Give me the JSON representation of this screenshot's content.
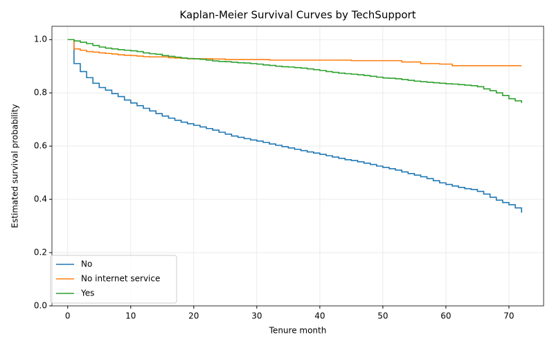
{
  "chart_data": {
    "type": "line",
    "drawstyle": "steps-post",
    "title": "Kaplan-Meier Survival Curves by TechSupport",
    "x_label": "Tenure month",
    "y_label": "Estimated survival probability",
    "x": [
      0,
      1,
      2,
      3,
      4,
      5,
      6,
      7,
      8,
      9,
      10,
      11,
      12,
      13,
      14,
      15,
      16,
      17,
      18,
      19,
      20,
      21,
      22,
      23,
      24,
      25,
      26,
      27,
      28,
      29,
      30,
      31,
      32,
      33,
      34,
      35,
      36,
      37,
      38,
      39,
      40,
      41,
      42,
      43,
      44,
      45,
      46,
      47,
      48,
      49,
      50,
      51,
      52,
      53,
      54,
      55,
      56,
      57,
      58,
      59,
      60,
      61,
      62,
      63,
      64,
      65,
      66,
      67,
      68,
      69,
      70,
      71,
      72
    ],
    "series": [
      {
        "name": "No",
        "color": "#1f77b4",
        "values": [
          1.0,
          0.91,
          0.88,
          0.857,
          0.836,
          0.82,
          0.81,
          0.797,
          0.786,
          0.773,
          0.762,
          0.752,
          0.742,
          0.732,
          0.722,
          0.713,
          0.705,
          0.697,
          0.69,
          0.684,
          0.678,
          0.672,
          0.666,
          0.66,
          0.652,
          0.645,
          0.638,
          0.633,
          0.628,
          0.623,
          0.619,
          0.614,
          0.608,
          0.603,
          0.598,
          0.593,
          0.588,
          0.583,
          0.578,
          0.574,
          0.569,
          0.564,
          0.559,
          0.554,
          0.549,
          0.546,
          0.541,
          0.536,
          0.531,
          0.525,
          0.52,
          0.515,
          0.51,
          0.503,
          0.497,
          0.491,
          0.485,
          0.478,
          0.47,
          0.462,
          0.456,
          0.45,
          0.445,
          0.44,
          0.437,
          0.43,
          0.42,
          0.408,
          0.397,
          0.388,
          0.38,
          0.368,
          0.35
        ]
      },
      {
        "name": "No internet service",
        "color": "#ff7f0e",
        "values": [
          1.0,
          0.965,
          0.96,
          0.955,
          0.953,
          0.95,
          0.948,
          0.946,
          0.943,
          0.941,
          0.94,
          0.938,
          0.936,
          0.935,
          0.935,
          0.935,
          0.932,
          0.931,
          0.93,
          0.928,
          0.928,
          0.928,
          0.928,
          0.927,
          0.927,
          0.925,
          0.925,
          0.925,
          0.925,
          0.925,
          0.925,
          0.925,
          0.923,
          0.923,
          0.923,
          0.923,
          0.923,
          0.923,
          0.923,
          0.923,
          0.923,
          0.923,
          0.923,
          0.923,
          0.923,
          0.921,
          0.921,
          0.921,
          0.921,
          0.921,
          0.921,
          0.921,
          0.921,
          0.916,
          0.916,
          0.916,
          0.91,
          0.91,
          0.91,
          0.908,
          0.908,
          0.902,
          0.902,
          0.902,
          0.902,
          0.902,
          0.902,
          0.902,
          0.902,
          0.902,
          0.902,
          0.902,
          0.902
        ]
      },
      {
        "name": "Yes",
        "color": "#2ca02c",
        "values": [
          1.0,
          0.995,
          0.99,
          0.985,
          0.978,
          0.972,
          0.968,
          0.965,
          0.962,
          0.96,
          0.958,
          0.955,
          0.95,
          0.947,
          0.945,
          0.94,
          0.937,
          0.934,
          0.931,
          0.929,
          0.928,
          0.926,
          0.923,
          0.92,
          0.918,
          0.917,
          0.915,
          0.913,
          0.912,
          0.91,
          0.908,
          0.905,
          0.903,
          0.9,
          0.898,
          0.897,
          0.895,
          0.893,
          0.89,
          0.887,
          0.884,
          0.88,
          0.877,
          0.874,
          0.872,
          0.87,
          0.868,
          0.865,
          0.862,
          0.859,
          0.856,
          0.855,
          0.853,
          0.85,
          0.847,
          0.844,
          0.842,
          0.84,
          0.838,
          0.836,
          0.834,
          0.833,
          0.831,
          0.829,
          0.827,
          0.823,
          0.815,
          0.808,
          0.8,
          0.79,
          0.778,
          0.77,
          0.762
        ]
      }
    ],
    "xlim": [
      -2.5,
      75.5
    ],
    "xticks": [
      0,
      10,
      20,
      30,
      40,
      50,
      60,
      70
    ],
    "ylim": [
      0,
      1.05
    ],
    "yticks": [
      {
        "value": 0,
        "label": "0.0"
      },
      {
        "value": 0.2,
        "label": "0.2"
      },
      {
        "value": 0.4,
        "label": "0.4"
      },
      {
        "value": 0.6,
        "label": "0.6"
      },
      {
        "value": 0.8,
        "label": "0.8"
      },
      {
        "value": 1.0,
        "label": "1.0"
      }
    ],
    "grid": true,
    "legend": "lower left"
  }
}
